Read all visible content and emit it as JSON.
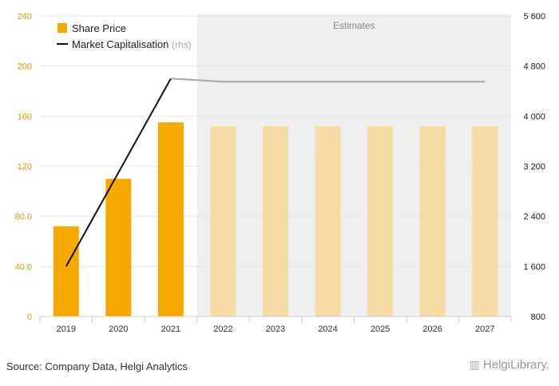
{
  "chart_data": {
    "type": "bar",
    "categories": [
      "2019",
      "2020",
      "2021",
      "2022",
      "2023",
      "2024",
      "2025",
      "2026",
      "2027"
    ],
    "estimate_from_index": 3,
    "series": [
      {
        "name": "Share Price",
        "kind": "bar",
        "axis": "left",
        "values": [
          72,
          110,
          155,
          152,
          152,
          152,
          152,
          152,
          152
        ],
        "color": "#f5a800",
        "estimate_color": "#f5dca5"
      },
      {
        "name": "Market Capitalisation",
        "name_suffix": "(rhs)",
        "kind": "line",
        "axis": "right",
        "values": [
          1600,
          null,
          4600,
          4550,
          4550,
          4550,
          4550,
          4550,
          4550
        ],
        "color": "#111111",
        "estimate_color": "#a8a8a8"
      }
    ],
    "estimates_label": "Estimates",
    "ylim_left": [
      0,
      240
    ],
    "yticks_left": [
      "0",
      "40.0",
      "80.0",
      "120",
      "160",
      "200",
      "240"
    ],
    "ylim_right": [
      800,
      5600
    ],
    "yticks_right": [
      "800",
      "1 600",
      "2 400",
      "3 200",
      "4 000",
      "4 800",
      "5 600"
    ],
    "legend_position": "top-left",
    "grid": true
  },
  "footer": {
    "source": "Source: Company Data, Helgi Analytics",
    "logo_text": "HelgiLibrary."
  }
}
